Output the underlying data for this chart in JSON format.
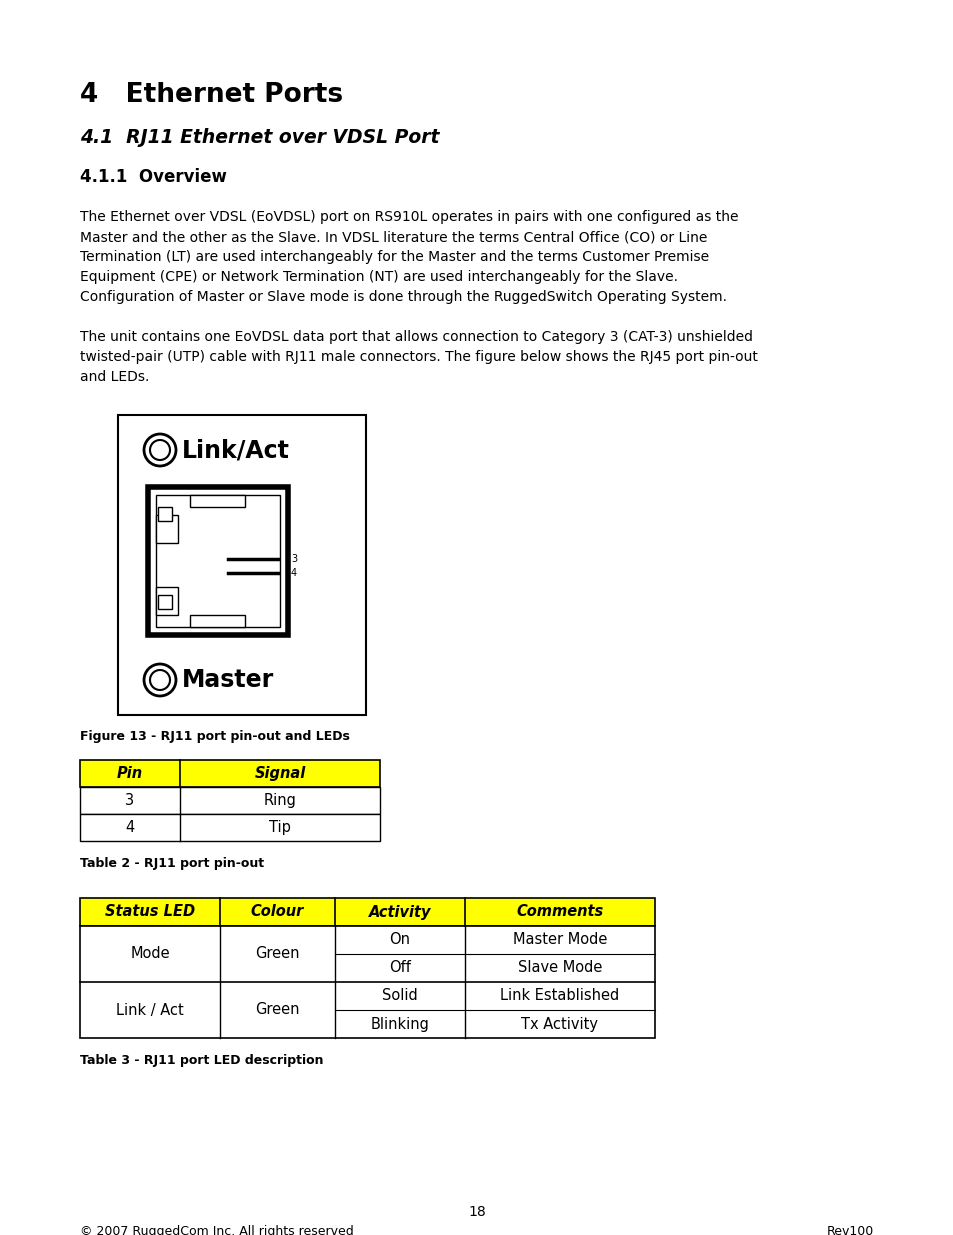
{
  "bg_color": "#ffffff",
  "title1": "4   Ethernet Ports",
  "title2": "4.1  RJ11 Ethernet over VDSL Port",
  "title3": "4.1.1  Overview",
  "para1": "The Ethernet over VDSL (EoVDSL) port on RS910L operates in pairs with one configured as the\nMaster and the other as the Slave. In VDSL literature the terms Central Office (CO) or Line\nTermination (LT) are used interchangeably for the Master and the terms Customer Premise\nEquipment (CPE) or Network Termination (NT) are used interchangeably for the Slave.\nConfiguration of Master or Slave mode is done through the RuggedSwitch Operating System.",
  "para2": "The unit contains one EoVDSL data port that allows connection to Category 3 (CAT-3) unshielded\ntwisted-pair (UTP) cable with RJ11 male connectors. The figure below shows the RJ45 port pin-out\nand LEDs.",
  "fig_caption": "Figure 13 - RJ11 port pin-out and LEDs",
  "table1_caption": "Table 2 - RJ11 port pin-out",
  "table1_headers": [
    "Pin",
    "Signal"
  ],
  "table1_data": [
    [
      "3",
      "Ring"
    ],
    [
      "4",
      "Tip"
    ]
  ],
  "table2_caption": "Table 3 - RJ11 port LED description",
  "table2_headers": [
    "Status LED",
    "Colour",
    "Activity",
    "Comments"
  ],
  "header_bg": "#ffff00",
  "footer_left": "© 2007 RuggedCom Inc. All rights reserved",
  "footer_right": "Rev100",
  "page_num": "18"
}
